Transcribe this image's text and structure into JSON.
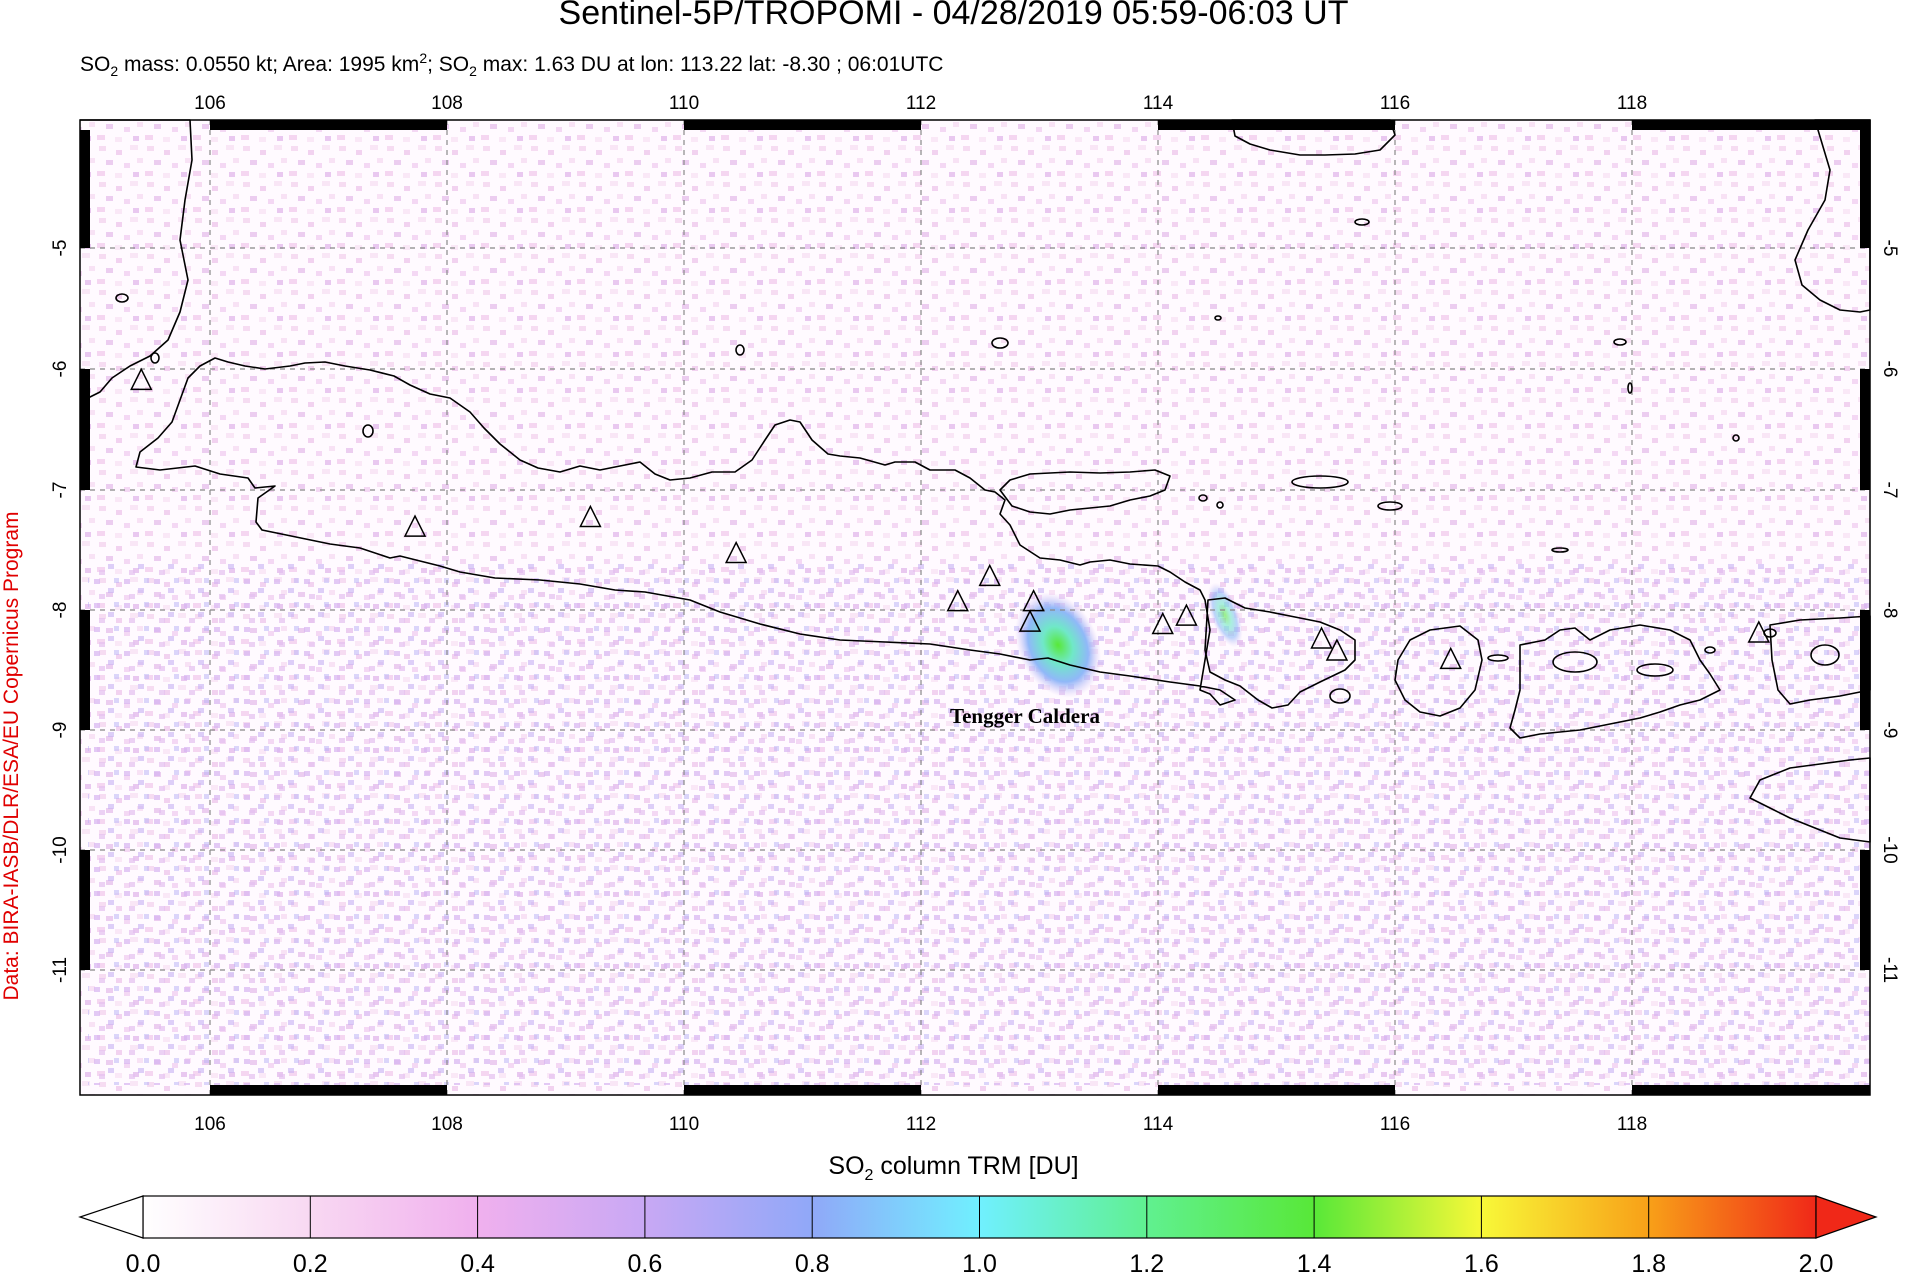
{
  "title": "Sentinel-5P/TROPOMI - 04/28/2019 05:59-06:03 UT",
  "subtitle": {
    "p1": "SO",
    "p1_sub": "2",
    "p2": " mass: 0.0550 kt; Area: 1995 km",
    "p2_sup": "2",
    "p3": "; SO",
    "p3_sub": "2",
    "p4": " max: 1.63 DU at lon: 113.22 lat: -8.30 ; 06:01UTC"
  },
  "credit": "Data: BIRA-IASB/DLR/ESA/EU Copernicus Program",
  "map": {
    "lon_ticks": [
      "106",
      "108",
      "110",
      "112",
      "114",
      "116",
      "118"
    ],
    "lat_ticks": [
      "-5",
      "-6",
      "-7",
      "-8",
      "-9",
      "-10",
      "-11"
    ],
    "volcano_label": "Tengger Caldera",
    "volcanoes": [
      {
        "lon": 105.42,
        "lat": -6.1
      },
      {
        "lon": 107.73,
        "lat": -7.32
      },
      {
        "lon": 109.21,
        "lat": -7.24
      },
      {
        "lon": 110.44,
        "lat": -7.54
      },
      {
        "lon": 112.31,
        "lat": -7.94
      },
      {
        "lon": 112.58,
        "lat": -7.73
      },
      {
        "lon": 112.95,
        "lat": -7.94
      },
      {
        "lon": 112.92,
        "lat": -8.11
      },
      {
        "lon": 114.04,
        "lat": -8.13
      },
      {
        "lon": 114.24,
        "lat": -8.06
      },
      {
        "lon": 115.38,
        "lat": -8.25
      },
      {
        "lon": 115.51,
        "lat": -8.35
      },
      {
        "lon": 116.47,
        "lat": -8.42
      },
      {
        "lon": 119.07,
        "lat": -8.2
      }
    ],
    "plume_center": {
      "lon": 113.22,
      "lat": -8.3
    }
  },
  "colorbar": {
    "label_main": "SO",
    "label_sub": "2",
    "label_rest": " column TRM [DU]",
    "ticks": [
      "0.0",
      "0.2",
      "0.4",
      "0.6",
      "0.8",
      "1.0",
      "1.2",
      "1.4",
      "1.6",
      "1.8",
      "2.0"
    ],
    "colors": [
      "#ffffff",
      "#f8d8f2",
      "#f0b0ee",
      "#c8a8f4",
      "#90a8f8",
      "#70f0ff",
      "#60f090",
      "#58e838",
      "#f8f838",
      "#f8a018",
      "#f02818"
    ]
  }
}
